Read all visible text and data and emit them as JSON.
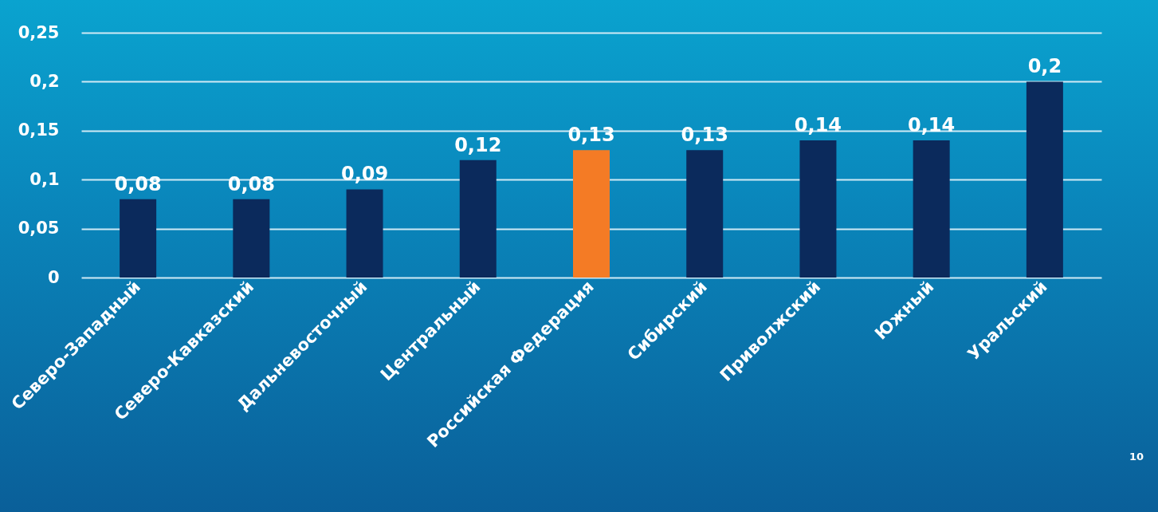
{
  "chart_data": {
    "type": "bar",
    "categories": [
      "Северо-Западный",
      "Северо-Кавказский",
      "Дальневосточный",
      "Центральный",
      "Российская Федерация",
      "Сибирский",
      "Приволжский",
      "Южный",
      "Уральский"
    ],
    "values": [
      0.08,
      0.08,
      0.09,
      0.12,
      0.13,
      0.13,
      0.14,
      0.14,
      0.2
    ],
    "colors": [
      "#0b2a5c",
      "#0b2a5c",
      "#0b2a5c",
      "#0b2a5c",
      "#f47b25",
      "#0b2a5c",
      "#0b2a5c",
      "#0b2a5c",
      "#0b2a5c"
    ],
    "value_labels": [
      "0,08",
      "0,08",
      "0,09",
      "0,12",
      "0,13",
      "0,13",
      "0,14",
      "0,14",
      "0,2"
    ],
    "ylim": [
      0,
      0.25
    ],
    "yticks": [
      0,
      {
        "value": 0.05,
        "label": "0,05"
      },
      {
        "value": 0.1,
        "label": "0,1"
      },
      {
        "value": 0.15,
        "label": "0,15"
      },
      {
        "value": 0.2,
        "label": "0,2"
      },
      {
        "value": 0.25,
        "label": "0,25"
      }
    ],
    "grid": "y",
    "legend": false,
    "annotations": [
      "10"
    ]
  }
}
